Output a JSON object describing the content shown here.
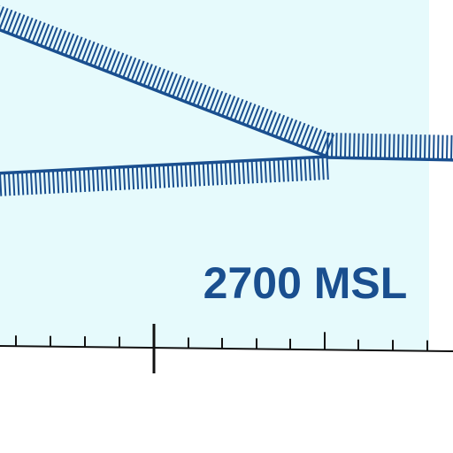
{
  "map": {
    "altitude_label": "2700 MSL",
    "colors": {
      "airspace_fill": "#e6fafc",
      "background": "#ffffff",
      "boundary_line": "#1a4f8f",
      "label_text": "#1a4f8f",
      "scale_line": "#111111"
    }
  }
}
